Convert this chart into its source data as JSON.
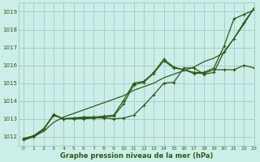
{
  "title": "Graphe pression niveau de la mer (hPa)",
  "bg_color": "#cceee8",
  "grid_color": "#aacccc",
  "line_color": "#2d5a1b",
  "xlim": [
    -0.5,
    23
  ],
  "ylim": [
    1011.5,
    1019.5
  ],
  "yticks": [
    1012,
    1013,
    1014,
    1015,
    1016,
    1017,
    1018,
    1019
  ],
  "xticks": [
    0,
    1,
    2,
    3,
    4,
    5,
    6,
    7,
    8,
    9,
    10,
    11,
    12,
    13,
    14,
    15,
    16,
    17,
    18,
    19,
    20,
    21,
    22,
    23
  ],
  "series": [
    {
      "y": [
        1011.8,
        1012.0,
        1012.3,
        1012.8,
        1013.1,
        1013.3,
        1013.5,
        1013.7,
        1013.9,
        1014.1,
        1014.3,
        1014.6,
        1014.8,
        1015.0,
        1015.3,
        1015.5,
        1015.7,
        1015.9,
        1016.2,
        1016.4,
        1016.7,
        1017.5,
        1018.3,
        1019.2
      ],
      "marker": null,
      "lw": 0.9
    },
    {
      "y": [
        1011.85,
        1012.05,
        1012.4,
        1013.2,
        1013.0,
        1013.05,
        1013.05,
        1013.05,
        1013.1,
        1013.15,
        1013.85,
        1014.9,
        1015.05,
        1015.55,
        1016.25,
        1015.85,
        1015.75,
        1015.55,
        1015.55,
        1015.75,
        1015.75,
        1015.75,
        1016.0,
        1015.85
      ],
      "marker": "+",
      "lw": 0.9
    },
    {
      "y": [
        1011.9,
        1012.05,
        1012.45,
        1013.2,
        1013.0,
        1013.0,
        1013.0,
        1013.05,
        1013.05,
        1013.0,
        1013.05,
        1013.2,
        1013.75,
        1014.35,
        1015.0,
        1015.05,
        1015.85,
        1015.85,
        1015.5,
        1015.6,
        1016.75,
        1017.5,
        1018.4,
        1019.2
      ],
      "marker": "+",
      "lw": 0.9
    },
    {
      "y": [
        1011.85,
        1012.0,
        1012.4,
        1013.25,
        1013.0,
        1013.05,
        1013.1,
        1013.1,
        1013.15,
        1013.2,
        1014.05,
        1015.0,
        1015.1,
        1015.6,
        1016.35,
        1015.9,
        1015.75,
        1015.6,
        1015.6,
        1015.85,
        1017.05,
        1018.6,
        1018.85,
        1019.1
      ],
      "marker": "+",
      "lw": 0.9
    }
  ]
}
